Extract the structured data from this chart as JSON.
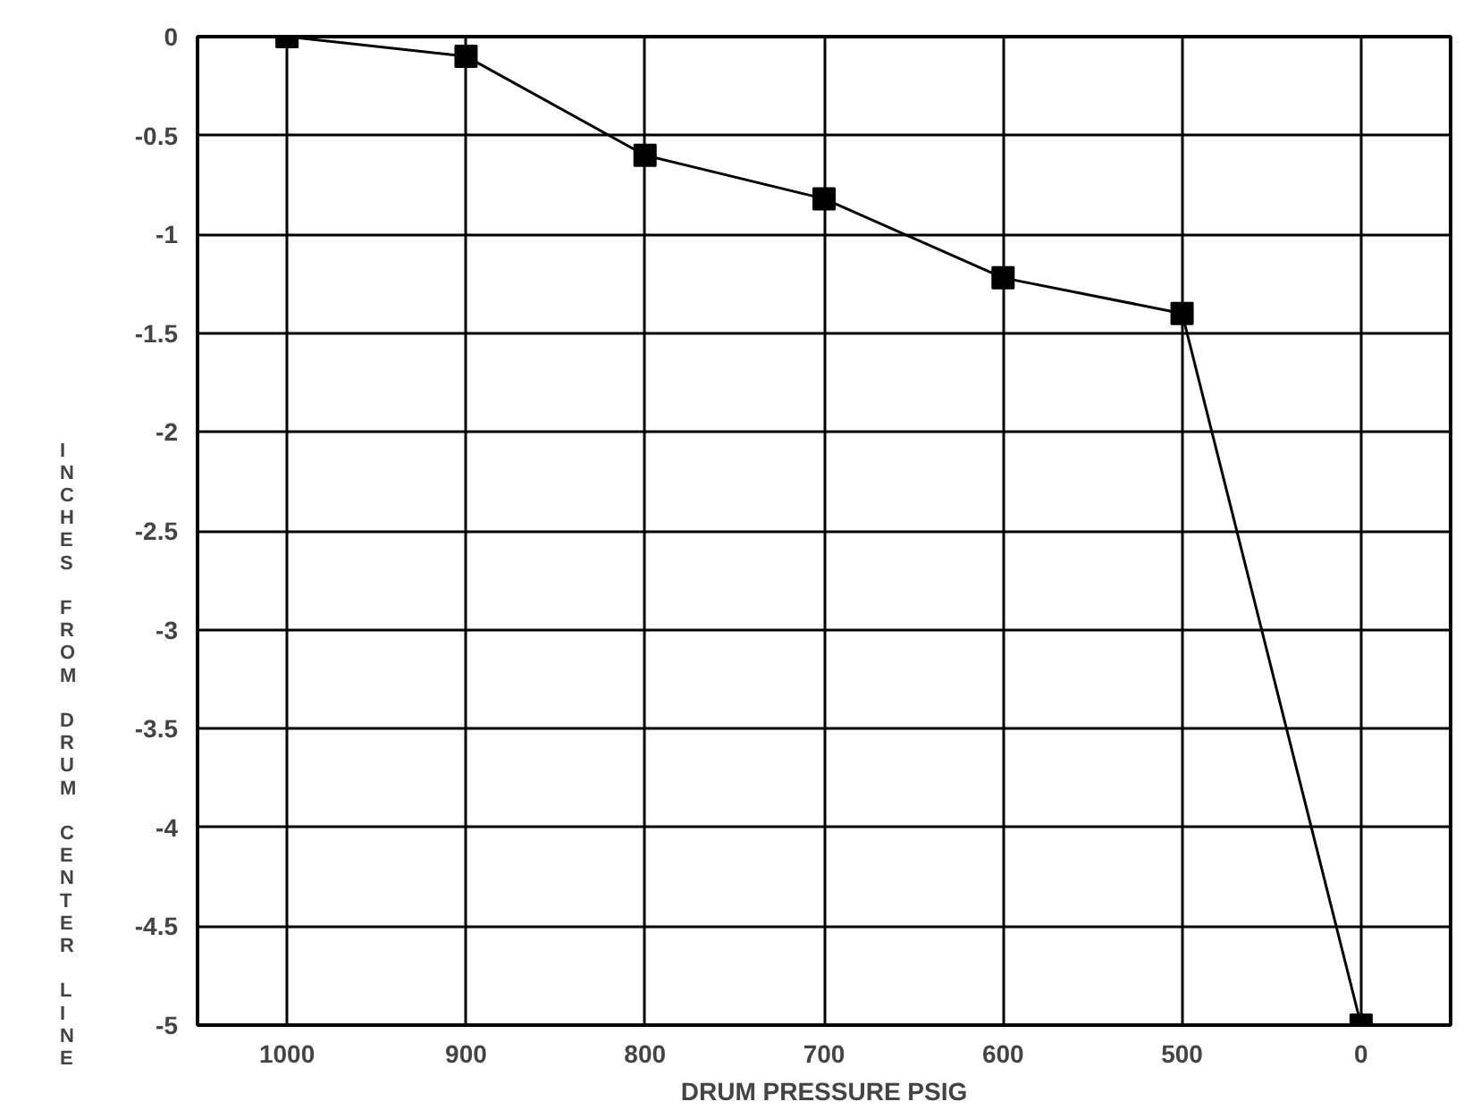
{
  "chart_data": {
    "type": "line",
    "xlabel": "DRUM PRESSURE PSIG",
    "ylabel": "INCHES FROM DRUM CENTER LINE",
    "categories": [
      "1000",
      "900",
      "800",
      "700",
      "600",
      "500",
      "0"
    ],
    "series": [
      {
        "color": "#000000",
        "values": [
          0,
          -0.1,
          -0.6,
          -0.82,
          -1.22,
          -1.4,
          -5
        ]
      }
    ],
    "ylim": [
      -5,
      0
    ],
    "yticks": [
      0,
      -0.5,
      -1,
      -1.5,
      -2,
      -2.5,
      -3,
      -3.5,
      -4,
      -4.5,
      -5
    ],
    "grid": true,
    "marker": "square",
    "line_style": "solid"
  }
}
